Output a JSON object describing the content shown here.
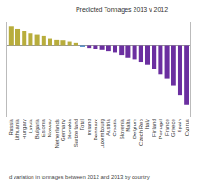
{
  "chart_data": {
    "type": "bar",
    "title": "Predicted Tonnages 2013 v 2012",
    "caption": "d variation in tonnages between 2012 and 2013 by country",
    "categories": [
      "Russia",
      "Lithuania",
      "Hungary",
      "Latvia",
      "Bulgaria",
      "Estonia",
      "Norway",
      "Netherlands",
      "Germany",
      "Slovakia",
      "Switzerland",
      "Total",
      "Ireland",
      "Denmark",
      "Luxembourg",
      "Austria",
      "Croatia",
      "Slovenia",
      "Malta",
      "Belgium",
      "Czech Rep",
      "Italy",
      "Finland",
      "Portugal",
      "France",
      "Greece",
      "Spain",
      "Cyprus"
    ],
    "values": [
      8,
      7,
      6,
      5,
      4.5,
      4,
      3,
      2.5,
      2,
      1.5,
      1,
      -0.5,
      -1,
      -1.5,
      -2,
      -2.5,
      -3,
      -4,
      -5,
      -6,
      -7,
      -8,
      -10,
      -12,
      -14,
      -17,
      -21,
      -25
    ],
    "colors": [
      "#b8ad3c",
      "#b8ad3c",
      "#b8ad3c",
      "#b8ad3c",
      "#b8ad3c",
      "#b8ad3c",
      "#b8ad3c",
      "#b8ad3c",
      "#b8ad3c",
      "#b8ad3c",
      "#b8ad3c",
      "#3b7fc4",
      "#6b2fa0",
      "#6b2fa0",
      "#6b2fa0",
      "#6b2fa0",
      "#6b2fa0",
      "#6b2fa0",
      "#6b2fa0",
      "#6b2fa0",
      "#6b2fa0",
      "#6b2fa0",
      "#6b2fa0",
      "#6b2fa0",
      "#6b2fa0",
      "#6b2fa0",
      "#6b2fa0",
      "#6b2fa0"
    ],
    "ylim": [
      -30,
      10
    ],
    "tick_labels": "x"
  }
}
